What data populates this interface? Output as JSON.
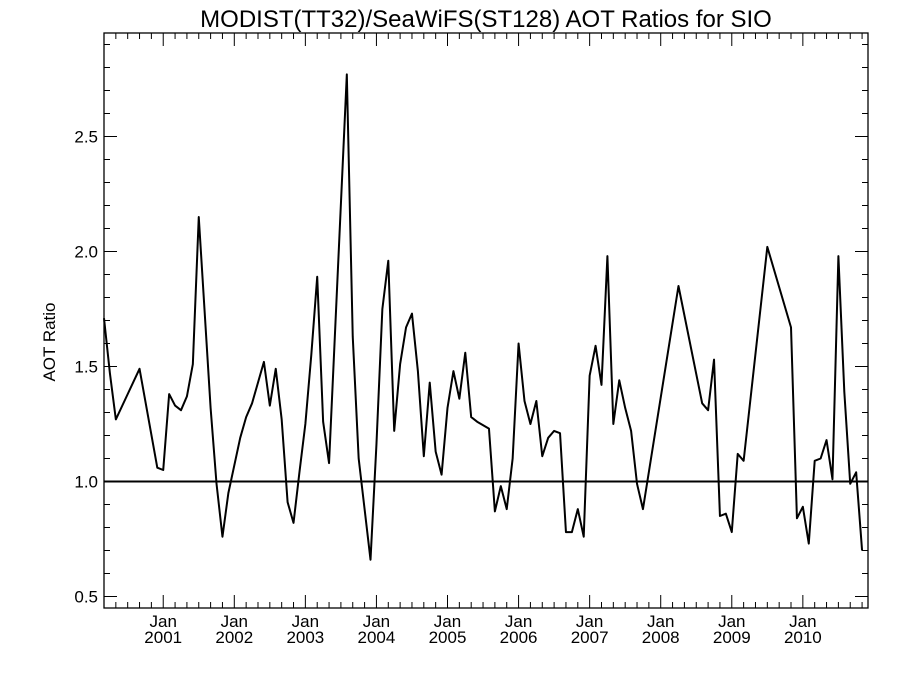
{
  "chart_data": {
    "type": "line",
    "title": "MODIST(TT32)/SeaWiFS(ST128)  AOT Ratios for SIO",
    "ylabel": "AOT Ratio",
    "xlabel": "",
    "xlim": [
      "2000-03",
      "2010-12"
    ],
    "ylim": [
      0.45,
      2.95
    ],
    "y_ticks": [
      {
        "value": 0.5,
        "label": "0.5"
      },
      {
        "value": 1.0,
        "label": "1.0"
      },
      {
        "value": 1.5,
        "label": "1.5"
      },
      {
        "value": 2.0,
        "label": "2.0"
      },
      {
        "value": 2.5,
        "label": "2.5"
      }
    ],
    "x_ticks": [
      {
        "date": "2001-01",
        "month": "Jan",
        "year": "2001"
      },
      {
        "date": "2002-01",
        "month": "Jan",
        "year": "2002"
      },
      {
        "date": "2003-01",
        "month": "Jan",
        "year": "2003"
      },
      {
        "date": "2004-01",
        "month": "Jan",
        "year": "2004"
      },
      {
        "date": "2005-01",
        "month": "Jan",
        "year": "2005"
      },
      {
        "date": "2006-01",
        "month": "Jan",
        "year": "2006"
      },
      {
        "date": "2007-01",
        "month": "Jan",
        "year": "2007"
      },
      {
        "date": "2008-01",
        "month": "Jan",
        "year": "2008"
      },
      {
        "date": "2009-01",
        "month": "Jan",
        "year": "2009"
      },
      {
        "date": "2010-01",
        "month": "Jan",
        "year": "2010"
      }
    ],
    "reference_line": {
      "y": 1.0
    },
    "grid": false,
    "series": [
      {
        "points": [
          [
            "2000-03",
            1.71
          ],
          [
            "2000-04",
            1.47
          ],
          [
            "2000-05",
            1.27
          ],
          [
            "2000-09",
            1.49
          ],
          [
            "2000-12",
            1.06
          ],
          [
            "2001-01",
            1.05
          ],
          [
            "2001-02",
            1.38
          ],
          [
            "2001-03",
            1.33
          ],
          [
            "2001-04",
            1.31
          ],
          [
            "2001-05",
            1.37
          ],
          [
            "2001-06",
            1.51
          ],
          [
            "2001-07",
            2.15
          ],
          [
            "2001-09",
            1.32
          ],
          [
            "2001-10",
            0.99
          ],
          [
            "2001-11",
            0.76
          ],
          [
            "2001-12",
            0.95
          ],
          [
            "2002-01",
            1.07
          ],
          [
            "2002-02",
            1.19
          ],
          [
            "2002-03",
            1.28
          ],
          [
            "2002-04",
            1.34
          ],
          [
            "2002-06",
            1.52
          ],
          [
            "2002-07",
            1.33
          ],
          [
            "2002-08",
            1.49
          ],
          [
            "2002-09",
            1.27
          ],
          [
            "2002-10",
            0.91
          ],
          [
            "2002-11",
            0.82
          ],
          [
            "2002-12",
            1.04
          ],
          [
            "2003-01",
            1.25
          ],
          [
            "2003-02",
            1.55
          ],
          [
            "2003-03",
            1.89
          ],
          [
            "2003-04",
            1.26
          ],
          [
            "2003-05",
            1.08
          ],
          [
            "2003-08",
            2.77
          ],
          [
            "2003-09",
            1.63
          ],
          [
            "2003-10",
            1.1
          ],
          [
            "2003-11",
            0.88
          ],
          [
            "2003-12",
            0.66
          ],
          [
            "2004-01",
            1.16
          ],
          [
            "2004-02",
            1.75
          ],
          [
            "2004-03",
            1.96
          ],
          [
            "2004-04",
            1.22
          ],
          [
            "2004-05",
            1.51
          ],
          [
            "2004-06",
            1.67
          ],
          [
            "2004-07",
            1.73
          ],
          [
            "2004-08",
            1.48
          ],
          [
            "2004-09",
            1.11
          ],
          [
            "2004-10",
            1.43
          ],
          [
            "2004-11",
            1.13
          ],
          [
            "2004-12",
            1.03
          ],
          [
            "2005-01",
            1.32
          ],
          [
            "2005-02",
            1.48
          ],
          [
            "2005-03",
            1.36
          ],
          [
            "2005-04",
            1.56
          ],
          [
            "2005-05",
            1.28
          ],
          [
            "2005-06",
            1.26
          ],
          [
            "2005-08",
            1.23
          ],
          [
            "2005-09",
            0.87
          ],
          [
            "2005-10",
            0.98
          ],
          [
            "2005-11",
            0.88
          ],
          [
            "2005-12",
            1.1
          ],
          [
            "2006-01",
            1.6
          ],
          [
            "2006-02",
            1.35
          ],
          [
            "2006-03",
            1.25
          ],
          [
            "2006-04",
            1.35
          ],
          [
            "2006-05",
            1.11
          ],
          [
            "2006-06",
            1.19
          ],
          [
            "2006-07",
            1.22
          ],
          [
            "2006-08",
            1.21
          ],
          [
            "2006-09",
            0.78
          ],
          [
            "2006-10",
            0.78
          ],
          [
            "2006-11",
            0.88
          ],
          [
            "2006-12",
            0.76
          ],
          [
            "2007-01",
            1.46
          ],
          [
            "2007-02",
            1.59
          ],
          [
            "2007-03",
            1.42
          ],
          [
            "2007-04",
            1.98
          ],
          [
            "2007-05",
            1.25
          ],
          [
            "2007-06",
            1.44
          ],
          [
            "2007-07",
            1.32
          ],
          [
            "2007-08",
            1.22
          ],
          [
            "2007-09",
            0.99
          ],
          [
            "2007-10",
            0.88
          ],
          [
            "2008-04",
            1.85
          ],
          [
            "2008-08",
            1.34
          ],
          [
            "2008-09",
            1.31
          ],
          [
            "2008-10",
            1.53
          ],
          [
            "2008-11",
            0.85
          ],
          [
            "2008-12",
            0.86
          ],
          [
            "2009-01",
            0.78
          ],
          [
            "2009-02",
            1.12
          ],
          [
            "2009-03",
            1.09
          ],
          [
            "2009-07",
            2.02
          ],
          [
            "2009-11",
            1.67
          ],
          [
            "2009-12",
            0.84
          ],
          [
            "2010-01",
            0.89
          ],
          [
            "2010-02",
            0.73
          ],
          [
            "2010-03",
            1.09
          ],
          [
            "2010-04",
            1.1
          ],
          [
            "2010-05",
            1.18
          ],
          [
            "2010-06",
            1.01
          ],
          [
            "2010-07",
            1.98
          ],
          [
            "2010-08",
            1.39
          ],
          [
            "2010-09",
            0.99
          ],
          [
            "2010-10",
            1.04
          ],
          [
            "2010-11",
            0.7
          ]
        ]
      }
    ]
  }
}
